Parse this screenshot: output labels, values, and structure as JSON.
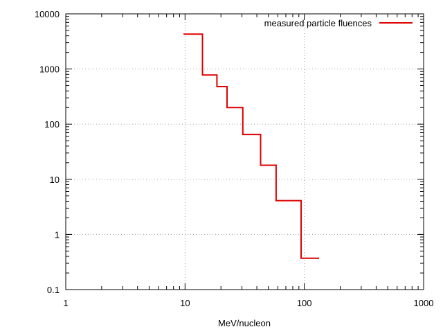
{
  "chart_data": {
    "type": "line",
    "title": "",
    "xlabel": "MeV/nucleon",
    "ylabel": "",
    "x_scale": "log",
    "y_scale": "log",
    "xlim": [
      1,
      1000
    ],
    "ylim": [
      0.1,
      10000
    ],
    "x_ticks": [
      1,
      10,
      100,
      1000
    ],
    "x_tick_labels": [
      "1",
      "10",
      "100",
      "1000"
    ],
    "y_ticks": [
      0.1,
      1,
      10,
      100,
      1000,
      10000
    ],
    "y_tick_labels": [
      "0.1",
      "1",
      "10",
      "100",
      "1000",
      "10000"
    ],
    "grid": true,
    "legend_position": "top-right",
    "series": [
      {
        "name": "measured particle fluences",
        "color": "#dd0000",
        "style": "steps",
        "bins": [
          {
            "x_from": 9.7,
            "x_to": 14,
            "y": 4300
          },
          {
            "x_from": 14,
            "x_to": 18.5,
            "y": 780
          },
          {
            "x_from": 18.5,
            "x_to": 22.5,
            "y": 480
          },
          {
            "x_from": 22.5,
            "x_to": 30.5,
            "y": 200
          },
          {
            "x_from": 30.5,
            "x_to": 43,
            "y": 65
          },
          {
            "x_from": 43,
            "x_to": 58,
            "y": 18
          },
          {
            "x_from": 58,
            "x_to": 94,
            "y": 4.1
          },
          {
            "x_from": 94,
            "x_to": 133,
            "y": 0.37
          }
        ]
      }
    ]
  }
}
